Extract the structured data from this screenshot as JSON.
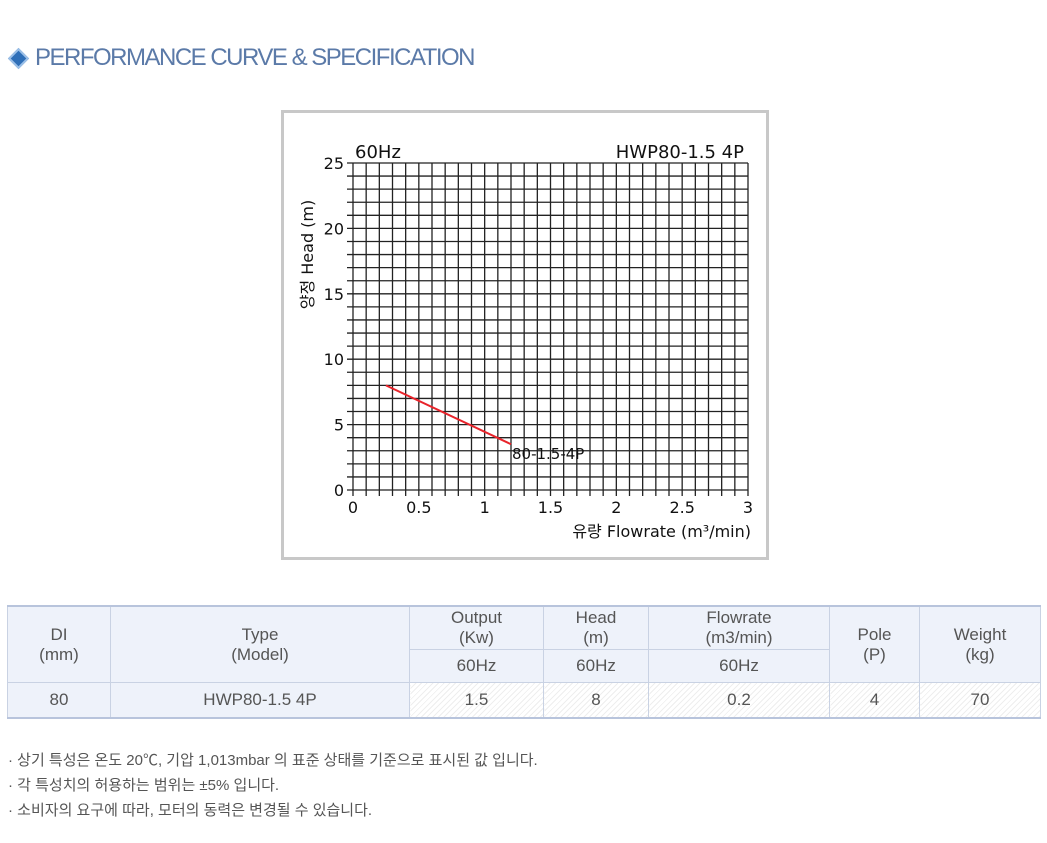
{
  "section_title": "PERFORMANCE CURVE & SPECIFICATION",
  "section_icon": "diamond-bullet-icon",
  "chart_data": {
    "type": "line",
    "title_left": "60Hz",
    "title_right": "HWP80-1.5 4P",
    "xlabel": "유량 Flowrate (m³/min)",
    "ylabel": "양정 Head (m)",
    "xlim": [
      0,
      3
    ],
    "ylim": [
      0,
      25
    ],
    "xticks": [
      "0",
      "0.5",
      "1",
      "1.5",
      "2",
      "2.5",
      "3"
    ],
    "yticks": [
      "0",
      "5",
      "10",
      "15",
      "20",
      "25"
    ],
    "grid": true,
    "series": [
      {
        "name": "80-1.5-4P",
        "color": "#e8232a",
        "x": [
          0.25,
          1.2
        ],
        "y": [
          8,
          3.5
        ]
      }
    ]
  },
  "table": {
    "headers": {
      "di": [
        "DI",
        "(mm)"
      ],
      "type": [
        "Type",
        "(Model)"
      ],
      "output": [
        "Output",
        "(Kw)"
      ],
      "head": [
        "Head",
        "(m)"
      ],
      "flowrate": [
        "Flowrate",
        "(m3/min)"
      ],
      "pole": [
        "Pole",
        "(P)"
      ],
      "weight": [
        "Weight",
        "(kg)"
      ],
      "sub": [
        "60Hz",
        "60Hz",
        "60Hz"
      ]
    },
    "rows": [
      [
        "80",
        "HWP80-1.5 4P",
        "1.5",
        "8",
        "0.2",
        "4",
        "70"
      ]
    ]
  },
  "notes": [
    "· 상기 특성은 온도 20℃, 기압 1,013mbar 의 표준 상태를 기준으로 표시된 값 입니다.",
    "· 각 특성치의 허용하는 범위는 ±5% 입니다.",
    "· 소비자의 요구에 따라, 모터의 동력은 변경될 수 있습니다."
  ]
}
